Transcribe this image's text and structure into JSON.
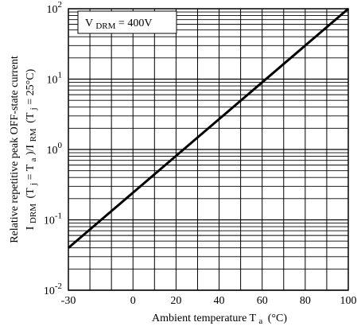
{
  "chart_data": {
    "type": "line",
    "title": "",
    "xlabel": "Ambient temperature T",
    "xlabel_sub": "a",
    "xlabel_unit": "(°C)",
    "ylabel_line1": "Relative repetitive peak OFF-state current",
    "ylabel_line2_main": "I",
    "ylabel_line2_sub1": "DRM",
    "ylabel_line2_mid1": "(T",
    "ylabel_line2_sub2": "j",
    "ylabel_line2_mid2": "= T",
    "ylabel_line2_sub3": "a",
    "ylabel_line2_mid3": ")/I",
    "ylabel_line2_sub4": "RM",
    "ylabel_line2_mid4": "(T",
    "ylabel_line2_sub5": "j",
    "ylabel_line2_end": "= 25°C)",
    "xlim": [
      -30,
      100
    ],
    "ylim": [
      0.01,
      100
    ],
    "yscale": "log",
    "grid": true,
    "x_ticks": [
      -30,
      0,
      20,
      40,
      60,
      80,
      100
    ],
    "x_tick_labels": [
      "-30",
      "0",
      "20",
      "40",
      "60",
      "80",
      "100"
    ],
    "y_ticks": [
      {
        "base": "10",
        "exp": "-2",
        "value": 0.01
      },
      {
        "base": "10",
        "exp": "-1",
        "value": 0.1
      },
      {
        "base": "10",
        "exp": "0",
        "value": 1
      },
      {
        "base": "10",
        "exp": "1",
        "value": 10
      },
      {
        "base": "10",
        "exp": "2",
        "value": 100
      }
    ],
    "annotation": {
      "prefix": "V",
      "sub": "DRM",
      "suffix": "= 400V"
    },
    "series": [
      {
        "x": [
          -30,
          100
        ],
        "y": [
          0.04,
          100
        ]
      }
    ]
  }
}
